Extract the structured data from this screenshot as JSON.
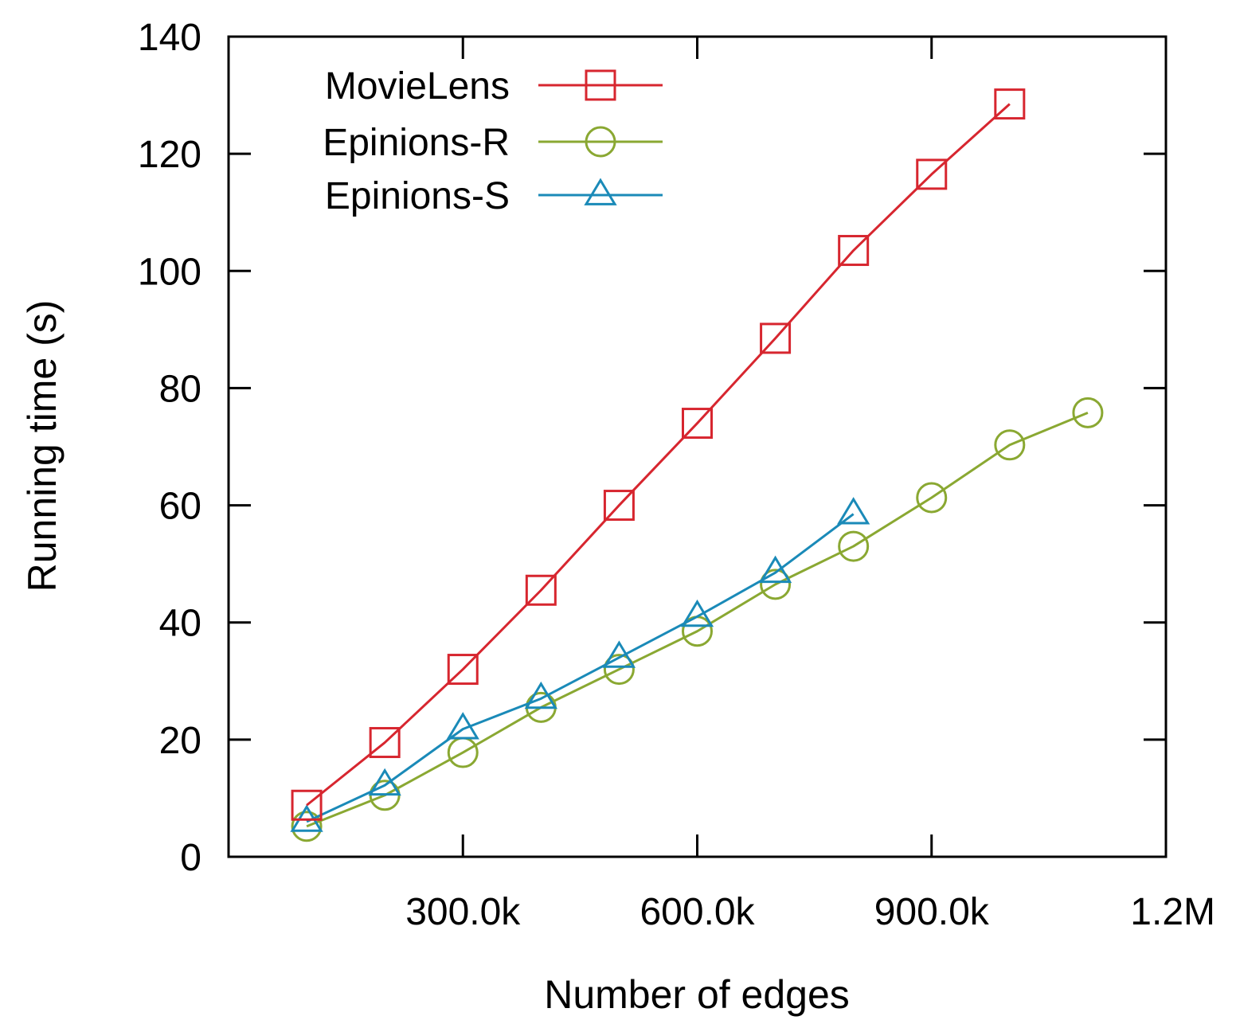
{
  "chart_data": {
    "type": "line",
    "title": "",
    "xlabel": "Number of edges",
    "ylabel": "Running time (s)",
    "xlim": [
      0,
      1200000
    ],
    "ylim": [
      0,
      140
    ],
    "x_ticks": [
      {
        "value": 300000,
        "label": "300.0k"
      },
      {
        "value": 600000,
        "label": "600.0k"
      },
      {
        "value": 900000,
        "label": "900.0k"
      },
      {
        "value": 1200000,
        "label": "1.2M"
      }
    ],
    "y_ticks": [
      {
        "value": 0,
        "label": "0"
      },
      {
        "value": 20,
        "label": "20"
      },
      {
        "value": 40,
        "label": "40"
      },
      {
        "value": 60,
        "label": "60"
      },
      {
        "value": 80,
        "label": "80"
      },
      {
        "value": 100,
        "label": "100"
      },
      {
        "value": 120,
        "label": "120"
      },
      {
        "value": 140,
        "label": "140"
      }
    ],
    "legend_position": "top-left",
    "grid": false,
    "series": [
      {
        "name": "MovieLens",
        "color": "#d7262f",
        "marker": "square",
        "x": [
          100000,
          200000,
          300000,
          400000,
          500000,
          600000,
          700000,
          800000,
          900000,
          1000000
        ],
        "values": [
          8.8,
          19.5,
          32.0,
          45.5,
          60.0,
          74.0,
          88.5,
          103.5,
          116.5,
          128.5
        ]
      },
      {
        "name": "Epinions-R",
        "color": "#8aa832",
        "marker": "circle",
        "x": [
          100000,
          200000,
          300000,
          400000,
          500000,
          600000,
          700000,
          800000,
          900000,
          1000000,
          1100000
        ],
        "values": [
          5.2,
          10.5,
          17.8,
          25.5,
          32.0,
          38.5,
          46.5,
          53.0,
          61.3,
          70.3,
          75.8
        ]
      },
      {
        "name": "Epinions-S",
        "color": "#1a8ab8",
        "marker": "triangle",
        "x": [
          100000,
          200000,
          300000,
          400000,
          500000,
          600000,
          700000,
          800000
        ],
        "values": [
          6.0,
          12.2,
          21.8,
          27.0,
          34.0,
          41.0,
          48.5,
          58.5
        ]
      }
    ]
  }
}
